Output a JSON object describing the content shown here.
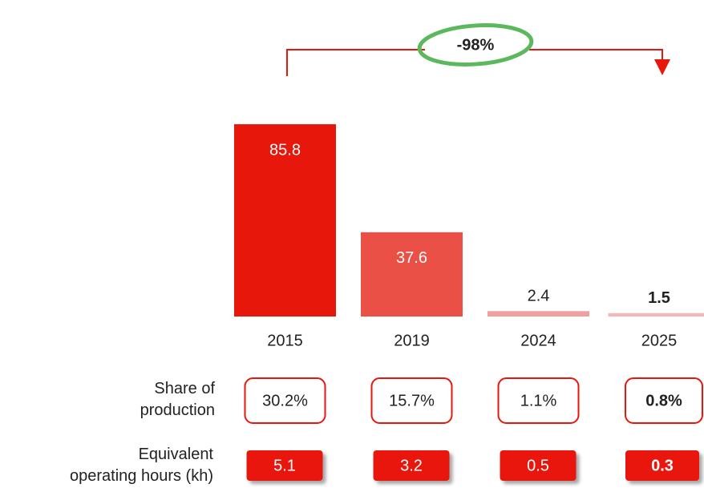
{
  "chart_data": {
    "type": "bar",
    "categories": [
      "2015",
      "2019",
      "2024",
      "2025"
    ],
    "values": [
      85.8,
      37.6,
      2.4,
      1.5
    ],
    "colors": [
      "#e8170b",
      "#ea5045",
      "#f0a0a0",
      "#f4b8b8"
    ],
    "ylim": [
      0,
      90
    ],
    "annotation": "-98%",
    "rows": [
      {
        "label": "Share of production",
        "values": [
          30.2,
          15.7,
          1.1,
          0.8
        ],
        "value_labels": [
          "30.2%",
          "15.7%",
          "1.1%",
          "0.8%"
        ]
      },
      {
        "label": "Equivalent operating hours (kh)",
        "values": [
          5.1,
          3.2,
          0.5,
          0.3
        ]
      }
    ]
  }
}
